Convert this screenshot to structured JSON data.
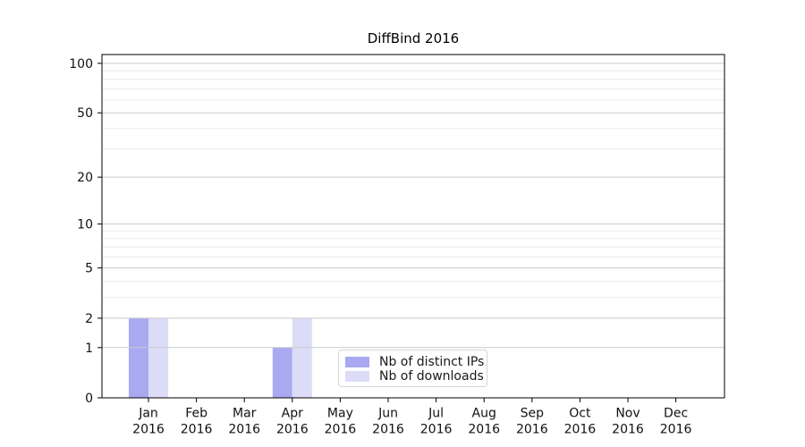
{
  "chart_data": {
    "type": "bar",
    "title": "DiffBind 2016",
    "categories": [
      "Jan 2016",
      "Feb 2016",
      "Mar 2016",
      "Apr 2016",
      "May 2016",
      "Jun 2016",
      "Jul 2016",
      "Aug 2016",
      "Sep 2016",
      "Oct 2016",
      "Nov 2016",
      "Dec 2016"
    ],
    "series": [
      {
        "name": "Nb of distinct IPs",
        "color": "#a9a9f2",
        "values": [
          2,
          0,
          0,
          1,
          0,
          0,
          0,
          0,
          0,
          0,
          0,
          0
        ]
      },
      {
        "name": "Nb of downloads",
        "color": "#dcdcf8",
        "values": [
          2,
          0,
          0,
          2,
          0,
          0,
          0,
          0,
          0,
          0,
          0,
          0
        ]
      }
    ],
    "xlabel": "",
    "ylabel": "",
    "yscale": "log1p",
    "ylim": [
      0,
      113
    ],
    "yticks": [
      0,
      1,
      2,
      5,
      10,
      20,
      50,
      100
    ],
    "minor_gridlines": [
      3,
      4,
      6,
      7,
      8,
      9,
      30,
      40,
      60,
      70,
      80,
      90
    ],
    "grid": "horizontal, drawn above bars",
    "legend_position": "lower center-left inside plot",
    "colors": {
      "major_grid": "#c9c9c9",
      "minor_grid": "#ececec",
      "axis": "#000000",
      "text": "#1a1a1a",
      "background": "#ffffff"
    }
  }
}
